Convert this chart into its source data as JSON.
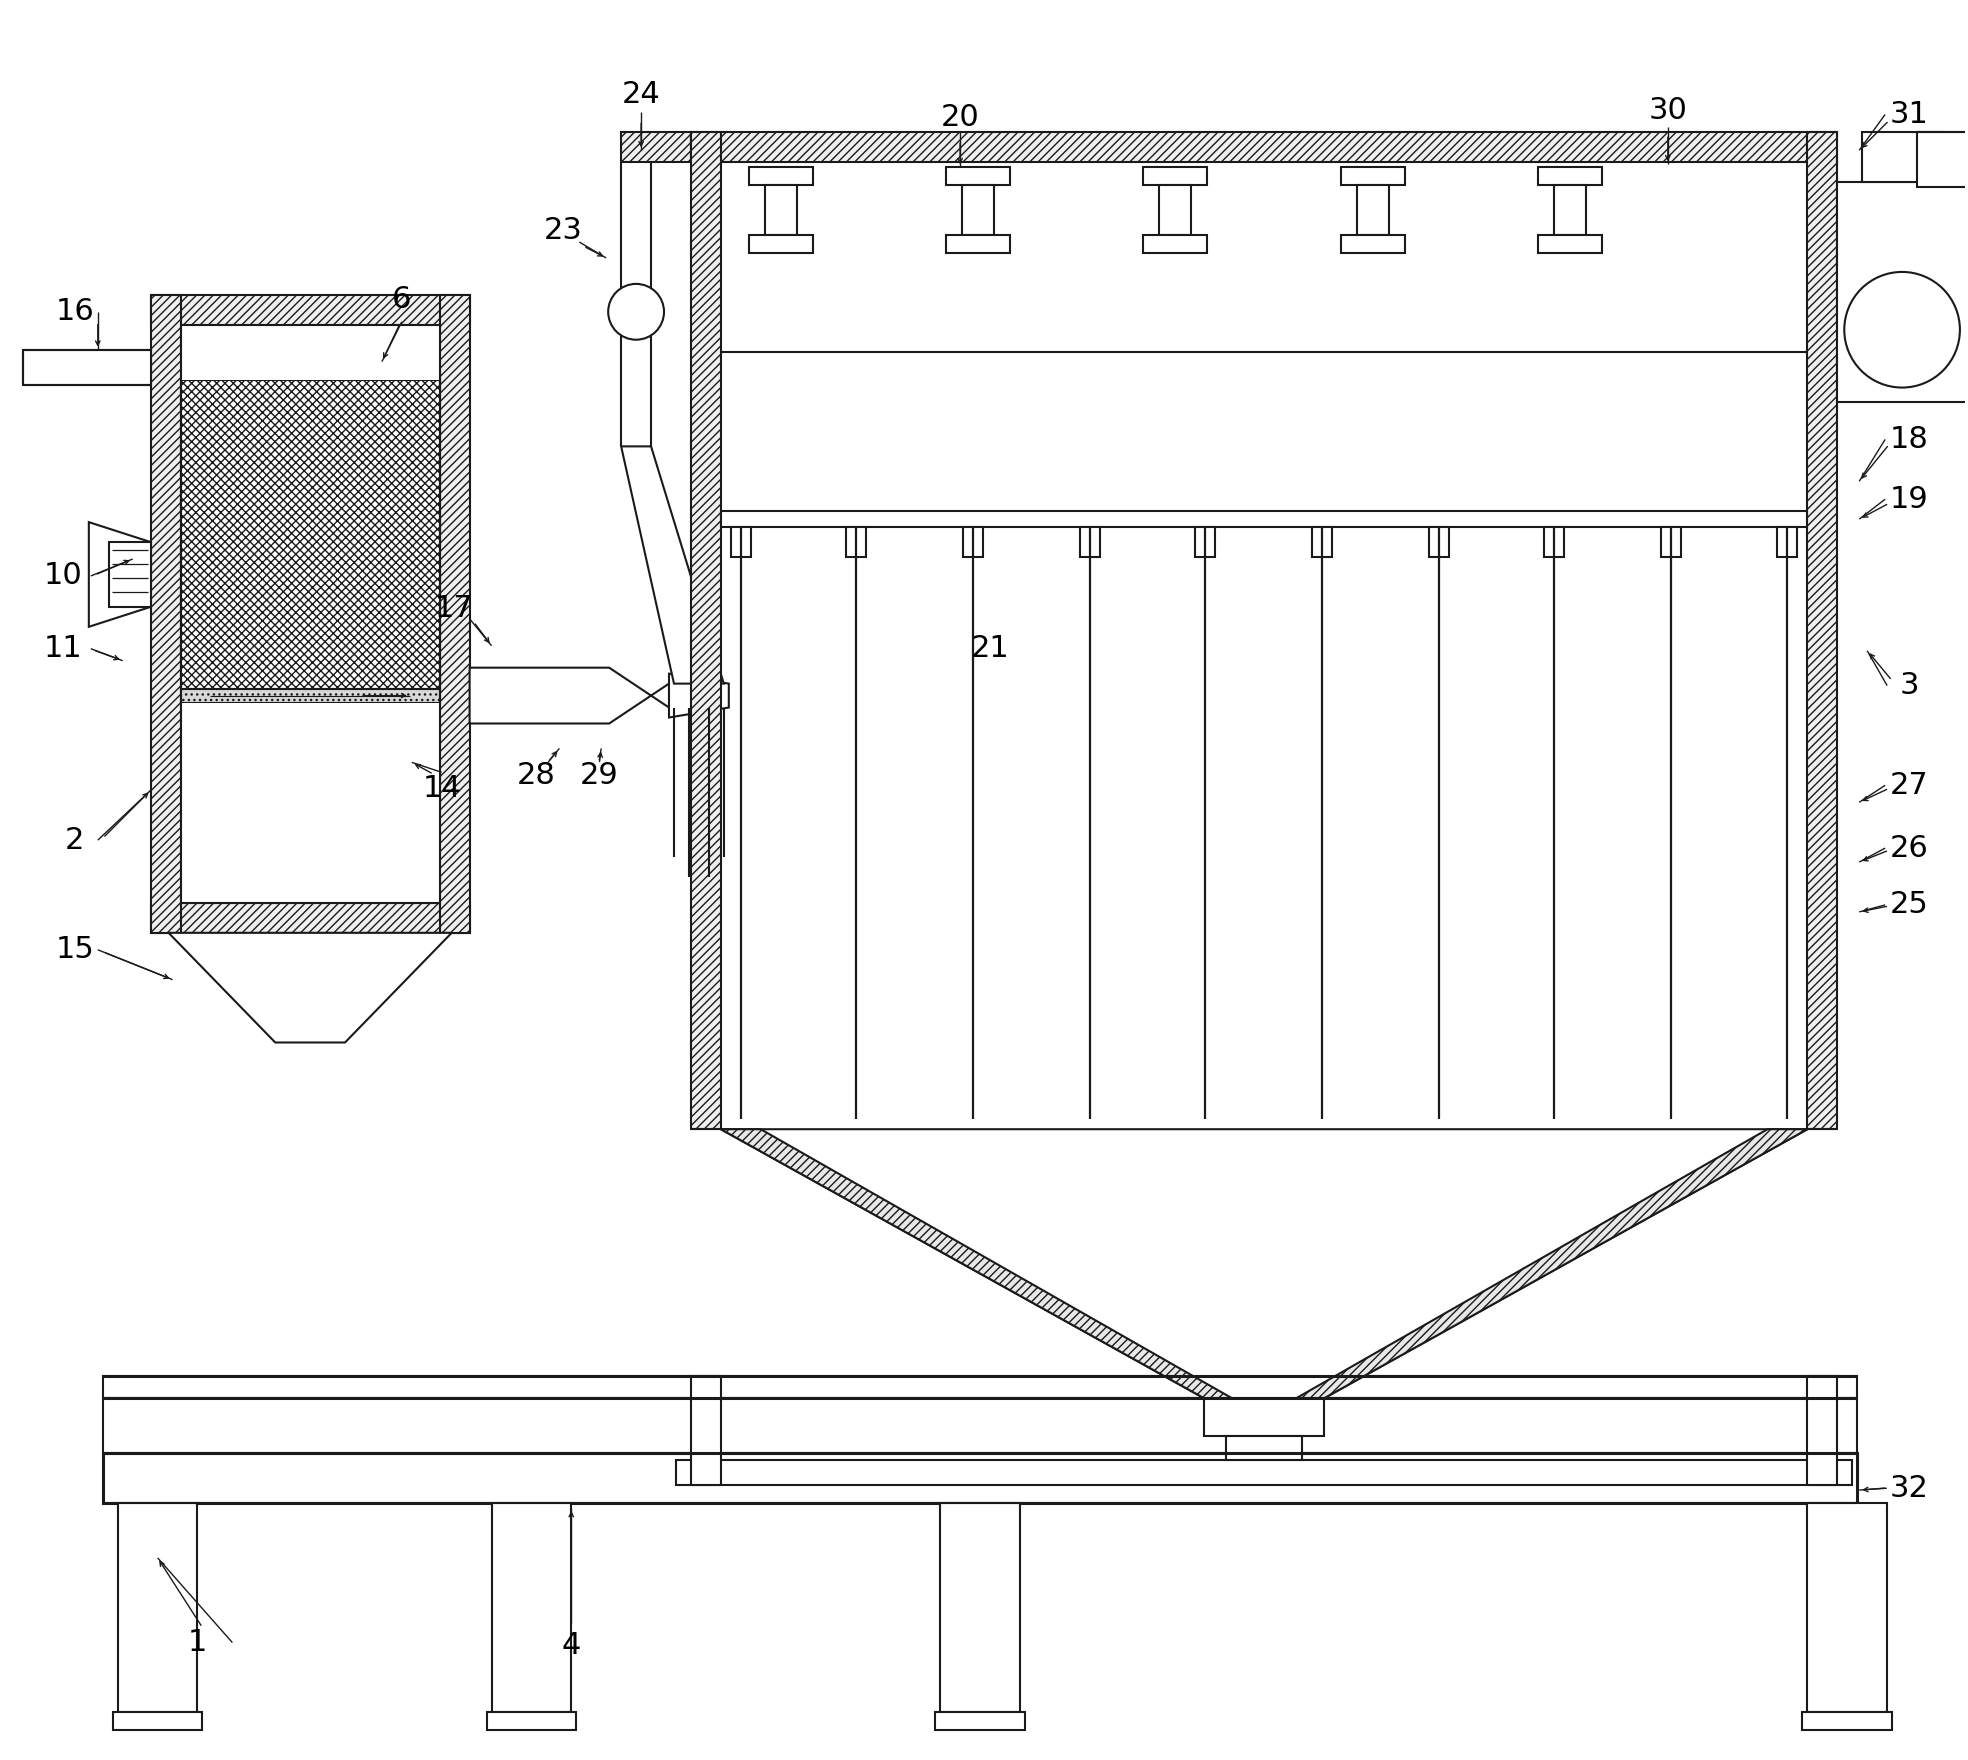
{
  "bg_color": "#ffffff",
  "lc": "#1a1a1a",
  "lw": 1.5,
  "tlw": 2.2,
  "fs": 22,
  "figsize": [
    19.68,
    17.6
  ],
  "dpi": 100
}
